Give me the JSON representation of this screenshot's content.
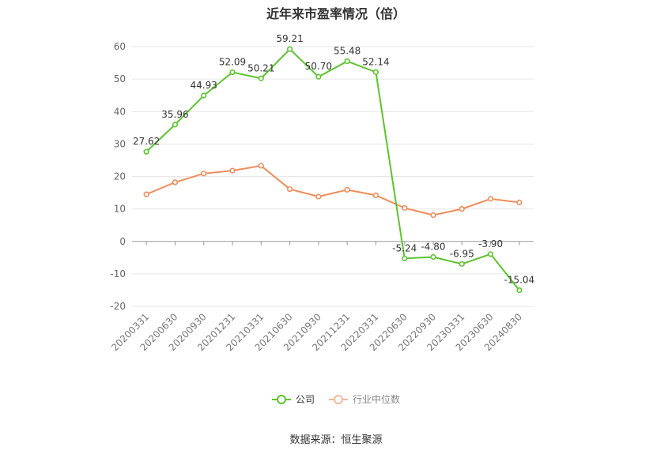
{
  "chart_data": {
    "type": "line",
    "title": "近年来市盈率情况（倍）",
    "categories": [
      "20200331",
      "20200630",
      "20200930",
      "20201231",
      "20210331",
      "20210630",
      "20210930",
      "20211231",
      "20220331",
      "20220630",
      "20220930",
      "20230331",
      "20230630",
      "20240830"
    ],
    "series": [
      {
        "name": "公司",
        "color": "#5cc42d",
        "values": [
          27.62,
          35.96,
          44.93,
          52.09,
          50.21,
          59.21,
          50.7,
          55.48,
          52.14,
          -5.24,
          -4.8,
          -6.95,
          -3.9,
          -15.04
        ],
        "labels": [
          "27.62",
          "35.96",
          "44.93",
          "52.09",
          "50.21",
          "59.21",
          "50.70",
          "55.48",
          "52.14",
          "-5.24",
          "-4.80",
          "-6.95",
          "-3.90",
          "-15.04"
        ],
        "show_labels": true
      },
      {
        "name": "行业中位数",
        "color": "#f08c5a",
        "values": [
          14.5,
          18.2,
          20.9,
          21.8,
          23.3,
          16.1,
          13.8,
          15.9,
          14.2,
          10.3,
          8.1,
          10.0,
          13.1,
          12.0
        ],
        "show_labels": false
      }
    ],
    "ylim": [
      -20,
      60
    ],
    "yticks": [
      -20,
      -10,
      0,
      10,
      20,
      30,
      40,
      50,
      60
    ],
    "grid": true,
    "legend_position": "bottom"
  },
  "legend": [
    {
      "label": "公司",
      "color": "#5cc42d"
    },
    {
      "label": "行业中位数",
      "color": "#f08c5a"
    }
  ],
  "source": "数据来源：恒生聚源"
}
